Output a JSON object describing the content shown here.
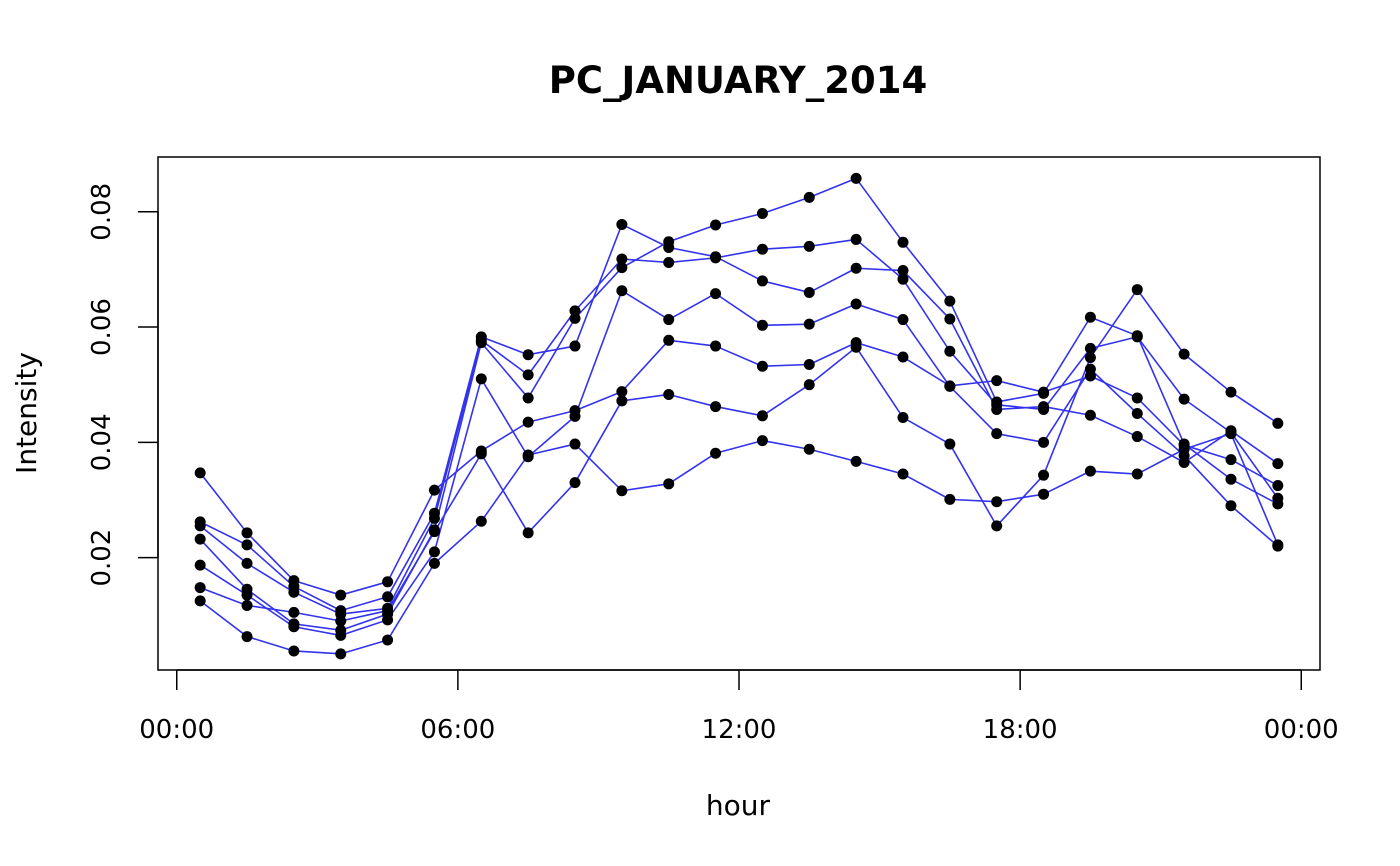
{
  "chart_data": {
    "type": "line",
    "title": "PC_JANUARY_2014",
    "xlabel": "hour",
    "ylabel": "Intensity",
    "x_ticks": [
      "00:00",
      "06:00",
      "12:00",
      "18:00",
      "00:00"
    ],
    "x_tick_values": [
      0,
      6,
      12,
      18,
      24
    ],
    "y_ticks": [
      "0.02",
      "0.04",
      "0.06",
      "0.08"
    ],
    "y_tick_values": [
      0.02,
      0.04,
      0.06,
      0.08
    ],
    "xlim": [
      -0.4,
      24.4
    ],
    "ylim": [
      0.0005,
      0.0895
    ],
    "grid": false,
    "line_color": "#3333ee",
    "point_color": "#000000",
    "x": [
      0.5,
      1.5,
      2.5,
      3.5,
      4.5,
      5.5,
      6.5,
      7.5,
      8.5,
      9.5,
      10.5,
      11.5,
      12.5,
      13.5,
      14.5,
      15.5,
      16.5,
      17.5,
      18.5,
      19.5,
      20.5,
      21.5,
      22.5,
      23.5
    ],
    "series": [
      {
        "values": [
          0.0347,
          0.0243,
          0.016,
          0.0135,
          0.0158,
          0.0317,
          0.0385,
          0.0435,
          0.0455,
          0.0488,
          0.0577,
          0.0567,
          0.0532,
          0.0535,
          0.0573,
          0.0548,
          0.0498,
          0.0507,
          0.0487,
          0.0515,
          0.0477,
          0.0395,
          0.037,
          0.0325
        ]
      },
      {
        "values": [
          0.0262,
          0.0222,
          0.015,
          0.0108,
          0.0132,
          0.0277,
          0.0583,
          0.0552,
          0.0567,
          0.0778,
          0.0738,
          0.0722,
          0.068,
          0.066,
          0.0702,
          0.0698,
          0.0614,
          0.0457,
          0.0462,
          0.0447,
          0.041,
          0.0365,
          0.042,
          0.0363
        ]
      },
      {
        "values": [
          0.0255,
          0.019,
          0.014,
          0.0102,
          0.0112,
          0.0268,
          0.0577,
          0.0517,
          0.0628,
          0.0718,
          0.0712,
          0.072,
          0.0735,
          0.074,
          0.0752,
          0.0683,
          0.0558,
          0.0465,
          0.0457,
          0.0563,
          0.0583,
          0.0475,
          0.0417,
          0.0303
        ]
      },
      {
        "values": [
          0.0232,
          0.0145,
          0.0085,
          0.0074,
          0.0102,
          0.0248,
          0.0573,
          0.0477,
          0.0615,
          0.0703,
          0.0748,
          0.0777,
          0.0797,
          0.0825,
          0.0858,
          0.0747,
          0.0645,
          0.047,
          0.0485,
          0.0617,
          0.0585,
          0.0397,
          0.0336,
          0.0293
        ]
      },
      {
        "values": [
          0.0187,
          0.0135,
          0.008,
          0.0065,
          0.0092,
          0.021,
          0.051,
          0.0375,
          0.0445,
          0.0663,
          0.0613,
          0.0658,
          0.0603,
          0.0605,
          0.064,
          0.0613,
          0.0497,
          0.0415,
          0.04,
          0.0527,
          0.045,
          0.0377,
          0.029,
          0.022
        ]
      },
      {
        "values": [
          0.0148,
          0.0117,
          0.0105,
          0.009,
          0.0108,
          0.0245,
          0.038,
          0.0243,
          0.033,
          0.0472,
          0.0483,
          0.0462,
          0.0446,
          0.05,
          0.0565,
          0.0443,
          0.0397,
          0.0255,
          0.0343,
          0.0547,
          0.0665,
          0.0553,
          0.0487,
          0.0433
        ]
      },
      {
        "values": [
          0.0125,
          0.0063,
          0.0038,
          0.0033,
          0.0057,
          0.019,
          0.0263,
          0.0378,
          0.0397,
          0.0316,
          0.0328,
          0.0381,
          0.0403,
          0.0388,
          0.0367,
          0.0345,
          0.0301,
          0.0297,
          0.031,
          0.035,
          0.0345,
          0.0388,
          0.0415,
          0.0222
        ]
      }
    ]
  }
}
